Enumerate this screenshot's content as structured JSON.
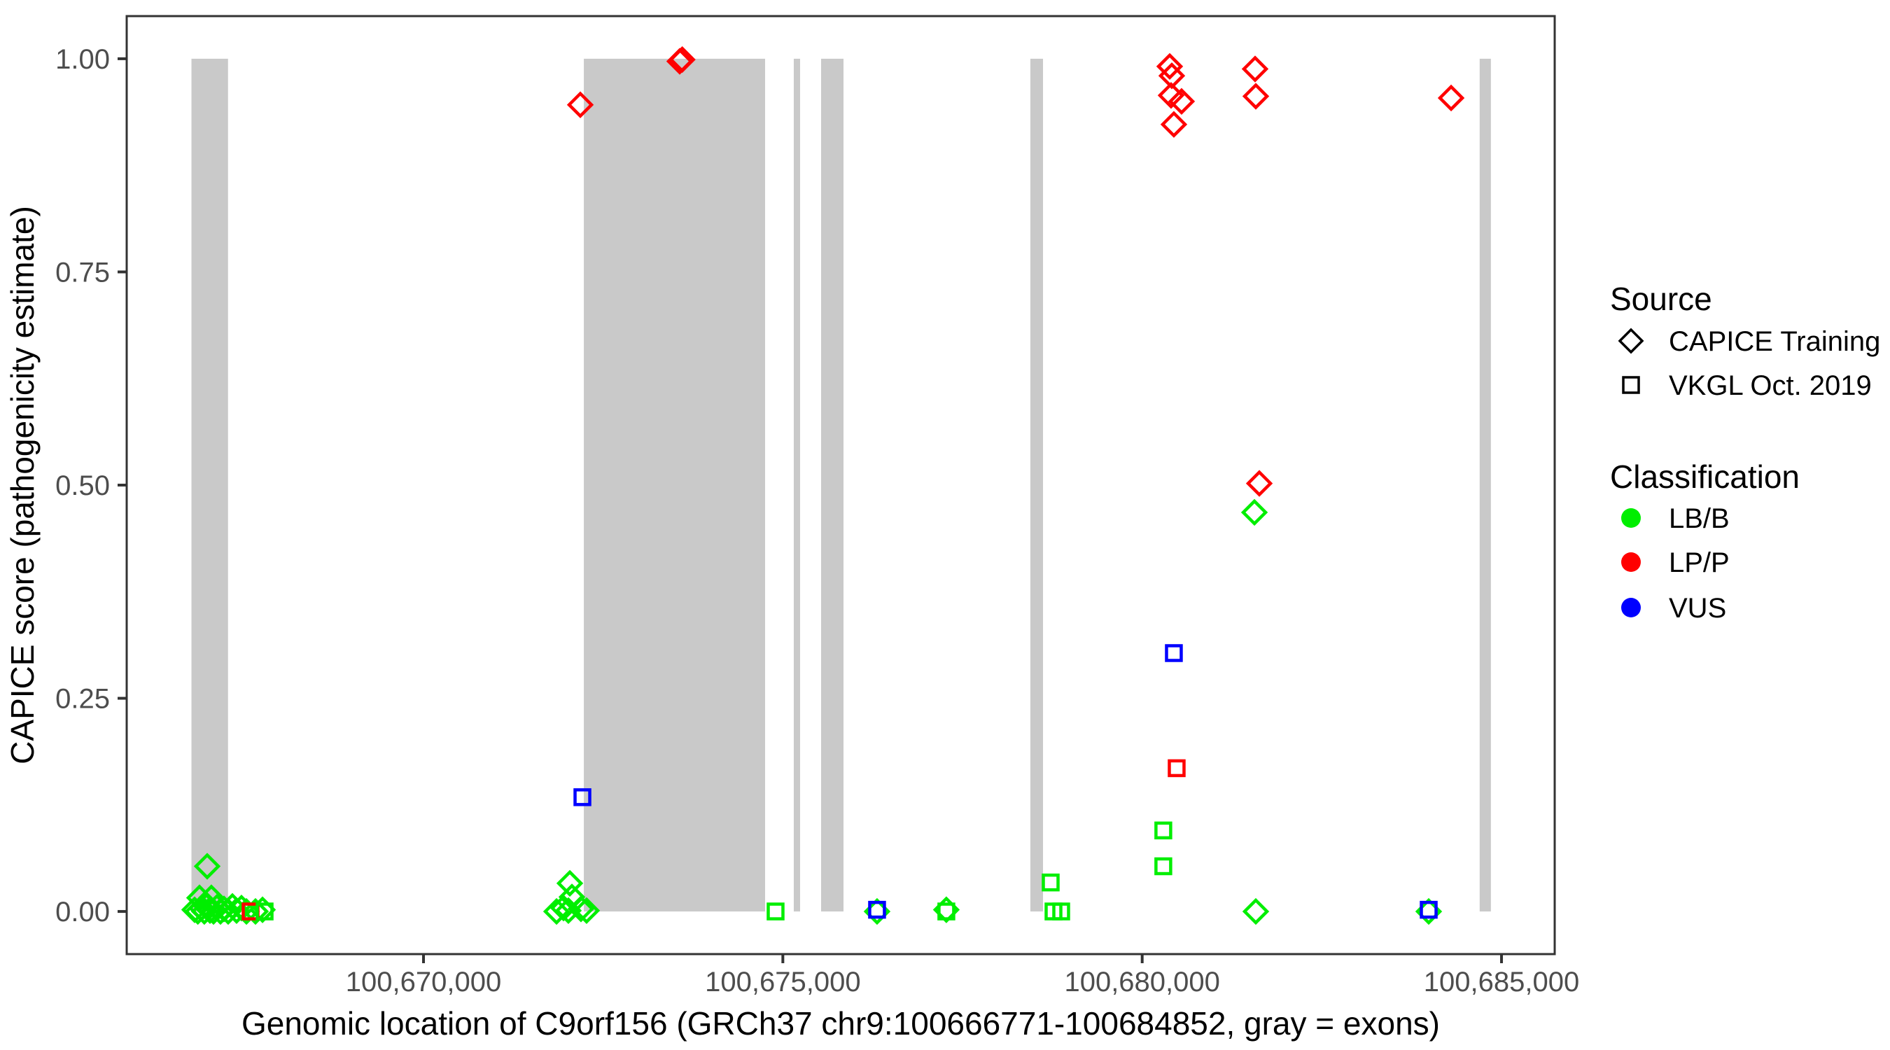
{
  "axes": {
    "x": {
      "title": "Genomic location of C9orf156 (GRCh37 chr9:100666771-100684852, gray = exons)",
      "ticks": [
        {
          "value": 100670000,
          "label": "100,670,000"
        },
        {
          "value": 100675000,
          "label": "100,675,000"
        },
        {
          "value": 100680000,
          "label": "100,680,000"
        },
        {
          "value": 100685000,
          "label": "100,685,000"
        }
      ]
    },
    "y": {
      "title": "CAPICE score (pathogenicity estimate)",
      "ticks": [
        {
          "value": 1.0,
          "label": "1.00"
        },
        {
          "value": 0.75,
          "label": "0.75"
        },
        {
          "value": 0.5,
          "label": "0.50"
        },
        {
          "value": 0.25,
          "label": "0.25"
        },
        {
          "value": 0.0,
          "label": "0.00"
        }
      ]
    }
  },
  "legend": {
    "source": {
      "title": "Source",
      "items": [
        {
          "label": "CAPICE Training",
          "shape": "diamond"
        },
        {
          "label": "VKGL Oct. 2019",
          "shape": "square"
        }
      ]
    },
    "classification": {
      "title": "Classification",
      "items": [
        {
          "label": "LB/B",
          "color": "#00EE00"
        },
        {
          "label": "LP/P",
          "color": "#FF0000"
        },
        {
          "label": "VUS",
          "color": "#0000FF"
        }
      ]
    }
  },
  "colors": {
    "LB/B": "#00EE00",
    "LP/P": "#FF0000",
    "VUS": "#0000FF",
    "exon": "#C9C9C9",
    "frame": "#333333",
    "tick_text": "#4d4d4d"
  },
  "chart_data": {
    "type": "scatter",
    "xlabel": "Genomic location of C9orf156 (GRCh37 chr9:100666771-100684852, gray = exons)",
    "ylabel": "CAPICE score (pathogenicity estimate)",
    "xlim": [
      100665870,
      100685740
    ],
    "ylim": [
      -0.05,
      1.05
    ],
    "x_tick_values": [
      100670000,
      100675000,
      100680000,
      100685000
    ],
    "x_tick_labels": [
      "100,670,000",
      "100,675,000",
      "100,680,000",
      "100,685,000"
    ],
    "y_tick_values": [
      0.0,
      0.25,
      0.5,
      0.75,
      1.0
    ],
    "y_tick_labels": [
      "0.00",
      "0.25",
      "0.50",
      "0.75",
      "1.00"
    ],
    "gene_range_note": "gray = exons",
    "exons": [
      [
        100666771,
        100667280
      ],
      [
        100672231,
        100674753
      ],
      [
        100675152,
        100675240
      ],
      [
        100675532,
        100675844
      ],
      [
        100678444,
        100678620
      ],
      [
        100684696,
        100684852
      ]
    ],
    "points": [
      {
        "x": 100666990,
        "y": 0.053,
        "classification": "LB/B",
        "source": "CAPICE Training"
      },
      {
        "x": 100666883,
        "y": 0.016,
        "classification": "LB/B",
        "source": "CAPICE Training"
      },
      {
        "x": 100667048,
        "y": 0.016,
        "classification": "LB/B",
        "source": "CAPICE Training"
      },
      {
        "x": 100666815,
        "y": 0.002,
        "classification": "LB/B",
        "source": "CAPICE Training"
      },
      {
        "x": 100666860,
        "y": 0.0,
        "classification": "LB/B",
        "source": "CAPICE Training"
      },
      {
        "x": 100666912,
        "y": 0.004,
        "classification": "LB/B",
        "source": "CAPICE Training"
      },
      {
        "x": 100666950,
        "y": 0.0,
        "classification": "LB/B",
        "source": "CAPICE Training"
      },
      {
        "x": 100666980,
        "y": 0.006,
        "classification": "LB/B",
        "source": "CAPICE Training"
      },
      {
        "x": 100667029,
        "y": 0.001,
        "classification": "LB/B",
        "source": "CAPICE Training"
      },
      {
        "x": 100667078,
        "y": 0.0,
        "classification": "LB/B",
        "source": "CAPICE Training"
      },
      {
        "x": 100667126,
        "y": 0.005,
        "classification": "LB/B",
        "source": "CAPICE Training"
      },
      {
        "x": 100667175,
        "y": 0.0,
        "classification": "LB/B",
        "source": "CAPICE Training"
      },
      {
        "x": 100667224,
        "y": 0.003,
        "classification": "LB/B",
        "source": "CAPICE Training"
      },
      {
        "x": 100667282,
        "y": 0.0,
        "classification": "LB/B",
        "source": "CAPICE Training"
      },
      {
        "x": 100667341,
        "y": 0.006,
        "classification": "LB/B",
        "source": "CAPICE Training"
      },
      {
        "x": 100667399,
        "y": 0.001,
        "classification": "LB/B",
        "source": "CAPICE Training"
      },
      {
        "x": 100667467,
        "y": 0.004,
        "classification": "LB/B",
        "source": "CAPICE Training"
      },
      {
        "x": 100667536,
        "y": 0.0,
        "classification": "LB/B",
        "source": "CAPICE Training"
      },
      {
        "x": 100667662,
        "y": 0.0,
        "classification": "LB/B",
        "source": "CAPICE Training"
      },
      {
        "x": 100667760,
        "y": 0.002,
        "classification": "LB/B",
        "source": "CAPICE Training"
      },
      {
        "x": 100667594,
        "y": 0.0,
        "classification": "LP/P",
        "source": "VKGL Oct. 2019"
      },
      {
        "x": 100667789,
        "y": 0.0,
        "classification": "LB/B",
        "source": "VKGL Oct. 2019"
      },
      {
        "x": 100672211,
        "y": 0.134,
        "classification": "VUS",
        "source": "VKGL Oct. 2019"
      },
      {
        "x": 100672036,
        "y": 0.033,
        "classification": "LB/B",
        "source": "CAPICE Training"
      },
      {
        "x": 100672065,
        "y": 0.017,
        "classification": "LB/B",
        "source": "CAPICE Training"
      },
      {
        "x": 100671851,
        "y": 0.0,
        "classification": "LB/B",
        "source": "CAPICE Training"
      },
      {
        "x": 100671948,
        "y": 0.004,
        "classification": "LB/B",
        "source": "CAPICE Training"
      },
      {
        "x": 100672016,
        "y": 0.001,
        "classification": "LB/B",
        "source": "CAPICE Training"
      },
      {
        "x": 100672191,
        "y": 0.003,
        "classification": "LB/B",
        "source": "CAPICE Training"
      },
      {
        "x": 100672269,
        "y": 0.001,
        "classification": "LB/B",
        "source": "CAPICE Training"
      },
      {
        "x": 100672182,
        "y": 0.946,
        "classification": "LP/P",
        "source": "CAPICE Training"
      },
      {
        "x": 100673565,
        "y": 0.997,
        "classification": "LP/P",
        "source": "CAPICE Training"
      },
      {
        "x": 100673600,
        "y": 0.999,
        "classification": "LP/P",
        "source": "CAPICE Training"
      },
      {
        "x": 100680383,
        "y": 0.991,
        "classification": "LP/P",
        "source": "CAPICE Training"
      },
      {
        "x": 100680412,
        "y": 0.98,
        "classification": "LP/P",
        "source": "CAPICE Training"
      },
      {
        "x": 100680402,
        "y": 0.957,
        "classification": "LP/P",
        "source": "CAPICE Training"
      },
      {
        "x": 100680548,
        "y": 0.95,
        "classification": "LP/P",
        "source": "CAPICE Training"
      },
      {
        "x": 100680441,
        "y": 0.923,
        "classification": "LP/P",
        "source": "CAPICE Training"
      },
      {
        "x": 100681571,
        "y": 0.988,
        "classification": "LP/P",
        "source": "CAPICE Training"
      },
      {
        "x": 100681581,
        "y": 0.956,
        "classification": "LP/P",
        "source": "CAPICE Training"
      },
      {
        "x": 100684299,
        "y": 0.954,
        "classification": "LP/P",
        "source": "CAPICE Training"
      },
      {
        "x": 100681630,
        "y": 0.502,
        "classification": "LP/P",
        "source": "CAPICE Training"
      },
      {
        "x": 100681562,
        "y": 0.468,
        "classification": "LB/B",
        "source": "CAPICE Training"
      },
      {
        "x": 100680441,
        "y": 0.303,
        "classification": "VUS",
        "source": "VKGL Oct. 2019"
      },
      {
        "x": 100680480,
        "y": 0.168,
        "classification": "LP/P",
        "source": "VKGL Oct. 2019"
      },
      {
        "x": 100680294,
        "y": 0.095,
        "classification": "LB/B",
        "source": "VKGL Oct. 2019"
      },
      {
        "x": 100680294,
        "y": 0.053,
        "classification": "LB/B",
        "source": "VKGL Oct. 2019"
      },
      {
        "x": 100674899,
        "y": 0.0,
        "classification": "LB/B",
        "source": "VKGL Oct. 2019"
      },
      {
        "x": 100676311,
        "y": 0.0,
        "classification": "LB/B",
        "source": "CAPICE Training"
      },
      {
        "x": 100676311,
        "y": 0.002,
        "classification": "VUS",
        "source": "VKGL Oct. 2019"
      },
      {
        "x": 100677275,
        "y": 0.002,
        "classification": "LB/B",
        "source": "CAPICE Training"
      },
      {
        "x": 100677275,
        "y": 0.0,
        "classification": "LB/B",
        "source": "VKGL Oct. 2019"
      },
      {
        "x": 100678727,
        "y": 0.034,
        "classification": "LB/B",
        "source": "VKGL Oct. 2019"
      },
      {
        "x": 100678766,
        "y": 0.0,
        "classification": "LB/B",
        "source": "VKGL Oct. 2019"
      },
      {
        "x": 100678873,
        "y": 0.0,
        "classification": "LB/B",
        "source": "VKGL Oct. 2019"
      },
      {
        "x": 100681581,
        "y": 0.0,
        "classification": "LB/B",
        "source": "CAPICE Training"
      },
      {
        "x": 100683987,
        "y": 0.0,
        "classification": "LB/B",
        "source": "CAPICE Training"
      },
      {
        "x": 100683987,
        "y": 0.002,
        "classification": "VUS",
        "source": "VKGL Oct. 2019"
      }
    ]
  }
}
